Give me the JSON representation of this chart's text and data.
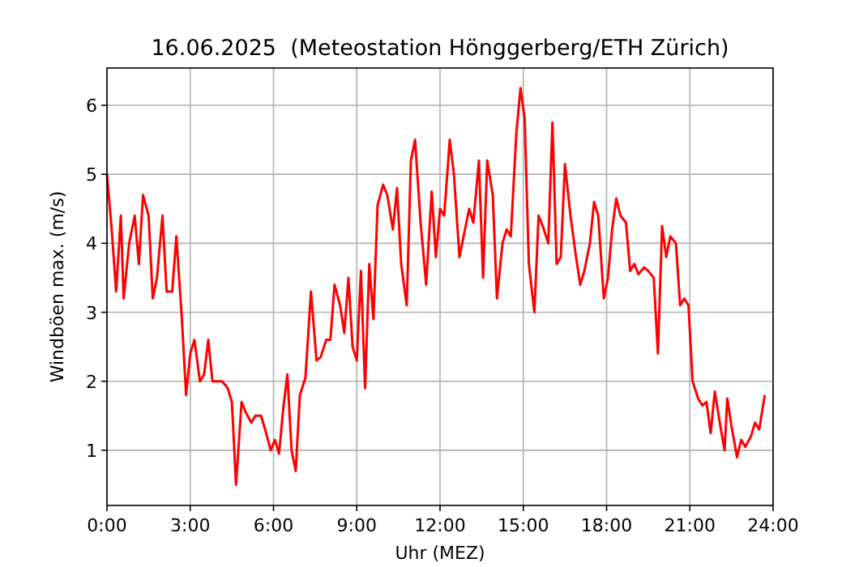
{
  "chart_data": {
    "type": "line",
    "title": "16.06.2025  (Meteostation Hönggerberg/ETH Zürich)",
    "xlabel": "Uhr (MEZ)",
    "ylabel": "Windböen max. (m/s)",
    "xlim": [
      0,
      24
    ],
    "ylim": [
      0.2,
      6.54
    ],
    "xticks": [
      {
        "value": 0,
        "label": "0:00"
      },
      {
        "value": 3,
        "label": "3:00"
      },
      {
        "value": 6,
        "label": "6:00"
      },
      {
        "value": 9,
        "label": "9:00"
      },
      {
        "value": 12,
        "label": "12:00"
      },
      {
        "value": 15,
        "label": "15:00"
      },
      {
        "value": 18,
        "label": "18:00"
      },
      {
        "value": 21,
        "label": "21:00"
      },
      {
        "value": 24,
        "label": "24:00"
      }
    ],
    "yticks": [
      1,
      2,
      3,
      4,
      5,
      6
    ],
    "grid": true,
    "marker": "none",
    "line_style": "solid",
    "x": [
      0,
      0.17,
      0.33,
      0.5,
      0.6,
      0.8,
      1.0,
      1.15,
      1.3,
      1.5,
      1.65,
      1.8,
      2.0,
      2.15,
      2.35,
      2.5,
      2.7,
      2.85,
      3.0,
      3.15,
      3.35,
      3.5,
      3.65,
      3.8,
      4.0,
      4.15,
      4.35,
      4.5,
      4.65,
      4.85,
      5.0,
      5.2,
      5.35,
      5.55,
      5.7,
      5.9,
      6.05,
      6.2,
      6.35,
      6.5,
      6.65,
      6.8,
      6.95,
      7.15,
      7.35,
      7.55,
      7.7,
      7.9,
      8.05,
      8.2,
      8.4,
      8.55,
      8.7,
      8.85,
      9.0,
      9.15,
      9.3,
      9.45,
      9.6,
      9.75,
      9.95,
      10.1,
      10.3,
      10.45,
      10.6,
      10.8,
      10.95,
      11.1,
      11.3,
      11.5,
      11.7,
      11.85,
      12.0,
      12.15,
      12.35,
      12.5,
      12.7,
      12.85,
      13.05,
      13.2,
      13.4,
      13.55,
      13.7,
      13.9,
      14.05,
      14.25,
      14.4,
      14.55,
      14.75,
      14.9,
      15.05,
      15.2,
      15.4,
      15.55,
      15.7,
      15.9,
      16.05,
      16.2,
      16.35,
      16.5,
      16.7,
      16.9,
      17.05,
      17.2,
      17.4,
      17.55,
      17.7,
      17.9,
      18.05,
      18.2,
      18.35,
      18.5,
      18.7,
      18.85,
      19.0,
      19.15,
      19.35,
      19.5,
      19.7,
      19.85,
      20.0,
      20.15,
      20.3,
      20.5,
      20.65,
      20.8,
      20.95,
      21.1,
      21.3,
      21.45,
      21.6,
      21.75,
      21.9,
      22.1,
      22.25,
      22.35,
      22.5,
      22.7,
      22.85,
      23.0,
      23.2,
      23.35,
      23.5,
      23.7
    ],
    "series": [
      {
        "color": "#ff0000",
        "values": [
          5.0,
          4.2,
          3.3,
          4.4,
          3.2,
          4.0,
          4.4,
          3.7,
          4.7,
          4.4,
          3.2,
          3.5,
          4.4,
          3.3,
          3.3,
          4.1,
          2.9,
          1.8,
          2.4,
          2.6,
          2.0,
          2.1,
          2.6,
          2.0,
          2.0,
          2.0,
          1.9,
          1.7,
          0.5,
          1.7,
          1.55,
          1.4,
          1.5,
          1.5,
          1.3,
          1.0,
          1.15,
          0.95,
          1.6,
          2.1,
          1.0,
          0.7,
          1.8,
          2.05,
          3.3,
          2.3,
          2.35,
          2.6,
          2.6,
          3.4,
          3.1,
          2.7,
          3.5,
          2.5,
          2.3,
          3.6,
          1.9,
          3.7,
          2.9,
          4.55,
          4.85,
          4.7,
          4.2,
          4.8,
          3.7,
          3.1,
          5.2,
          5.5,
          4.3,
          3.4,
          4.75,
          3.8,
          4.5,
          4.4,
          5.5,
          5.0,
          3.8,
          4.1,
          4.5,
          4.3,
          5.2,
          3.5,
          5.2,
          4.7,
          3.2,
          4.0,
          4.2,
          4.1,
          5.6,
          6.25,
          5.8,
          3.7,
          3.0,
          4.4,
          4.25,
          4.0,
          5.75,
          3.7,
          3.8,
          5.15,
          4.4,
          3.8,
          3.4,
          3.6,
          4.0,
          4.6,
          4.4,
          3.2,
          3.5,
          4.2,
          4.65,
          4.4,
          4.3,
          3.6,
          3.7,
          3.55,
          3.65,
          3.6,
          3.5,
          2.4,
          4.25,
          3.8,
          4.1,
          4.0,
          3.1,
          3.2,
          3.1,
          2.0,
          1.75,
          1.65,
          1.7,
          1.25,
          1.85,
          1.35,
          1.0,
          1.75,
          1.35,
          0.9,
          1.15,
          1.05,
          1.2,
          1.4,
          1.3,
          1.8
        ]
      }
    ]
  }
}
